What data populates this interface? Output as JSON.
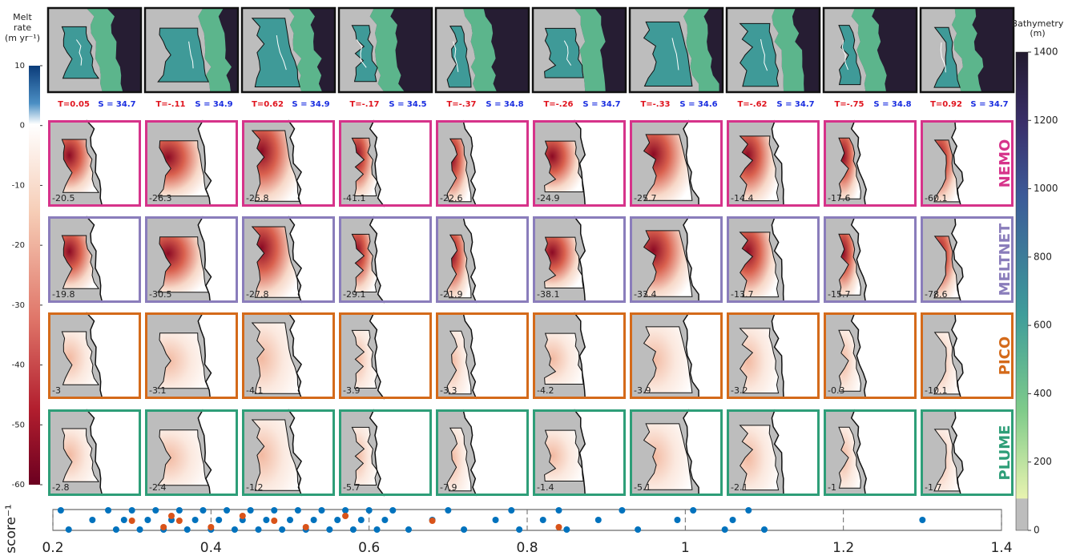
{
  "chart_data": {
    "type": "scatter",
    "ylabel": "score⁻¹",
    "xlim": [
      0.2,
      1.4
    ],
    "xticks": [
      0.2,
      0.4,
      0.6,
      0.8,
      1,
      1.2,
      1.4
    ],
    "grid": true,
    "series": [
      {
        "color": "#0072bd",
        "x": [
          0.21,
          0.22,
          0.25,
          0.27,
          0.28,
          0.29,
          0.3,
          0.31,
          0.32,
          0.33,
          0.34,
          0.35,
          0.36,
          0.37,
          0.38,
          0.39,
          0.4,
          0.41,
          0.42,
          0.43,
          0.44,
          0.45,
          0.46,
          0.47,
          0.48,
          0.49,
          0.5,
          0.51,
          0.52,
          0.53,
          0.54,
          0.55,
          0.56,
          0.57,
          0.58,
          0.59,
          0.6,
          0.61,
          0.62,
          0.63,
          0.65,
          0.68,
          0.7,
          0.72,
          0.76,
          0.78,
          0.79,
          0.82,
          0.84,
          0.85,
          0.89,
          0.92,
          0.94,
          0.99,
          1.01,
          1.05,
          1.06,
          1.08,
          1.1,
          1.3
        ]
      },
      {
        "color": "#d95319",
        "x": [
          0.3,
          0.34,
          0.35,
          0.36,
          0.4,
          0.44,
          0.48,
          0.52,
          0.57,
          0.68,
          0.84
        ]
      }
    ]
  },
  "melt_colorbar": {
    "title": [
      "Melt",
      "rate",
      "(m yr⁻¹)"
    ],
    "ylim": [
      -60,
      10
    ],
    "yticks": [
      10,
      0,
      -10,
      -20,
      -30,
      -40,
      -50,
      -60
    ]
  },
  "bathy_colorbar": {
    "title": [
      "Bathymetry",
      "(m)"
    ],
    "ylim": [
      0,
      1400
    ],
    "yticks": [
      0,
      200,
      400,
      600,
      800,
      1000,
      1200,
      1400
    ]
  },
  "columns": {
    "T": [
      "T=0.05",
      "T=-.11",
      "T=0.62",
      "T=-.17",
      "T=-.37",
      "T=-.26",
      "T=-.33",
      "T=-.62",
      "T=-.75",
      "T=0.92"
    ],
    "S": [
      "S = 34.7",
      "S = 34.9",
      "S = 34.9",
      "S = 34.5",
      "S = 34.8",
      "S = 34.7",
      "S = 34.6",
      "S = 34.7",
      "S = 34.8",
      "S = 34.7"
    ]
  },
  "rows": [
    {
      "name": "NEMO",
      "color": "#d6338a",
      "values": [
        -20.5,
        -26.3,
        -25.8,
        -41.1,
        -22.6,
        -24.9,
        -25.7,
        -14.4,
        -17.6,
        -60.1
      ]
    },
    {
      "name": "MELTNET",
      "color": "#8a7dbb",
      "values": [
        -19.8,
        -30.5,
        -27.8,
        -29.1,
        -21.9,
        -38.1,
        -33.4,
        -13.7,
        -15.7,
        -78.6
      ]
    },
    {
      "name": "PICO",
      "color": "#d46a1a",
      "values": [
        -3,
        -3.1,
        -4.1,
        -3.9,
        -3.3,
        -4.2,
        -3.9,
        -3.2,
        -0.3,
        -10.1
      ]
    },
    {
      "name": "PLUME",
      "color": "#2e9e78",
      "values": [
        -2.8,
        -2.4,
        -1.2,
        -5.7,
        -7.9,
        -1.4,
        -5.1,
        -2.1,
        -1,
        -1.7
      ]
    }
  ]
}
